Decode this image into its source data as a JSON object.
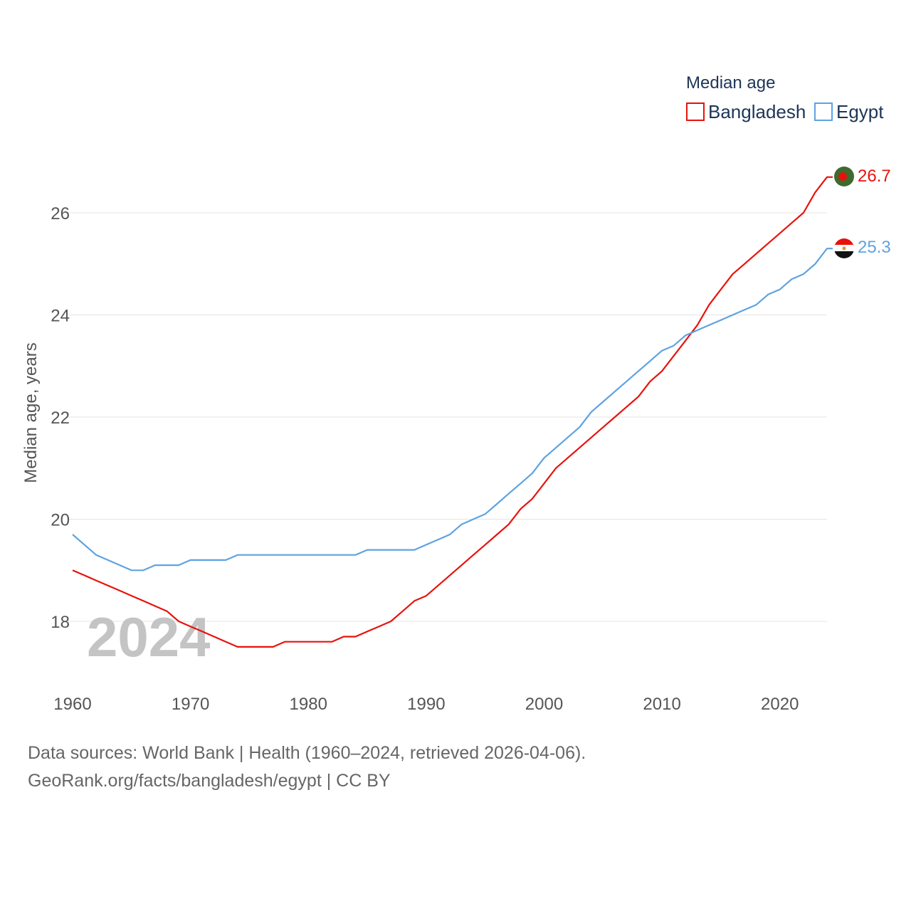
{
  "chart_data": {
    "type": "line",
    "title": "",
    "xlabel": "",
    "ylabel": "Median age, years",
    "legend_title": "Median age",
    "legend_position": "top-right",
    "watermark_year": "2024",
    "xlim": [
      1960,
      2024
    ],
    "ylim": [
      16.8,
      27.2
    ],
    "x_ticks": [
      1960,
      1970,
      1980,
      1990,
      2000,
      2010,
      2020
    ],
    "y_ticks": [
      18,
      20,
      22,
      24,
      26
    ],
    "grid": true,
    "x": [
      1960,
      1961,
      1962,
      1963,
      1964,
      1965,
      1966,
      1967,
      1968,
      1969,
      1970,
      1971,
      1972,
      1973,
      1974,
      1975,
      1976,
      1977,
      1978,
      1979,
      1980,
      1981,
      1982,
      1983,
      1984,
      1985,
      1986,
      1987,
      1988,
      1989,
      1990,
      1991,
      1992,
      1993,
      1994,
      1995,
      1996,
      1997,
      1998,
      1999,
      2000,
      2001,
      2002,
      2003,
      2004,
      2005,
      2006,
      2007,
      2008,
      2009,
      2010,
      2011,
      2012,
      2013,
      2014,
      2015,
      2016,
      2017,
      2018,
      2019,
      2020,
      2021,
      2022,
      2023,
      2024
    ],
    "series": [
      {
        "name": "Bangladesh",
        "color": "#e8120c",
        "end_label": "26.7",
        "flag": "bangladesh-flag-icon",
        "values": [
          19.0,
          18.9,
          18.8,
          18.7,
          18.6,
          18.5,
          18.4,
          18.3,
          18.2,
          18.0,
          17.9,
          17.8,
          17.7,
          17.6,
          17.5,
          17.5,
          17.5,
          17.5,
          17.6,
          17.6,
          17.6,
          17.6,
          17.6,
          17.7,
          17.7,
          17.8,
          17.9,
          18.0,
          18.2,
          18.4,
          18.5,
          18.7,
          18.9,
          19.1,
          19.3,
          19.5,
          19.7,
          19.9,
          20.2,
          20.4,
          20.7,
          21.0,
          21.2,
          21.4,
          21.6,
          21.8,
          22.0,
          22.2,
          22.4,
          22.7,
          22.9,
          23.2,
          23.5,
          23.8,
          24.2,
          24.5,
          24.8,
          25.0,
          25.2,
          25.4,
          25.6,
          25.8,
          26.0,
          26.4,
          26.7
        ]
      },
      {
        "name": "Egypt",
        "color": "#5ea3e0",
        "end_label": "25.3",
        "flag": "egypt-flag-icon",
        "values": [
          19.7,
          19.5,
          19.3,
          19.2,
          19.1,
          19.0,
          19.0,
          19.1,
          19.1,
          19.1,
          19.2,
          19.2,
          19.2,
          19.2,
          19.3,
          19.3,
          19.3,
          19.3,
          19.3,
          19.3,
          19.3,
          19.3,
          19.3,
          19.3,
          19.3,
          19.4,
          19.4,
          19.4,
          19.4,
          19.4,
          19.5,
          19.6,
          19.7,
          19.9,
          20.0,
          20.1,
          20.3,
          20.5,
          20.7,
          20.9,
          21.2,
          21.4,
          21.6,
          21.8,
          22.1,
          22.3,
          22.5,
          22.7,
          22.9,
          23.1,
          23.3,
          23.4,
          23.6,
          23.7,
          23.8,
          23.9,
          24.0,
          24.1,
          24.2,
          24.4,
          24.5,
          24.7,
          24.8,
          25.0,
          25.3
        ]
      }
    ]
  },
  "footer": {
    "source_line1": "Data sources: World Bank | Health (1960–2024, retrieved 2026-04-06).",
    "source_line2": "GeoRank.org/facts/bangladesh/egypt | CC BY"
  }
}
